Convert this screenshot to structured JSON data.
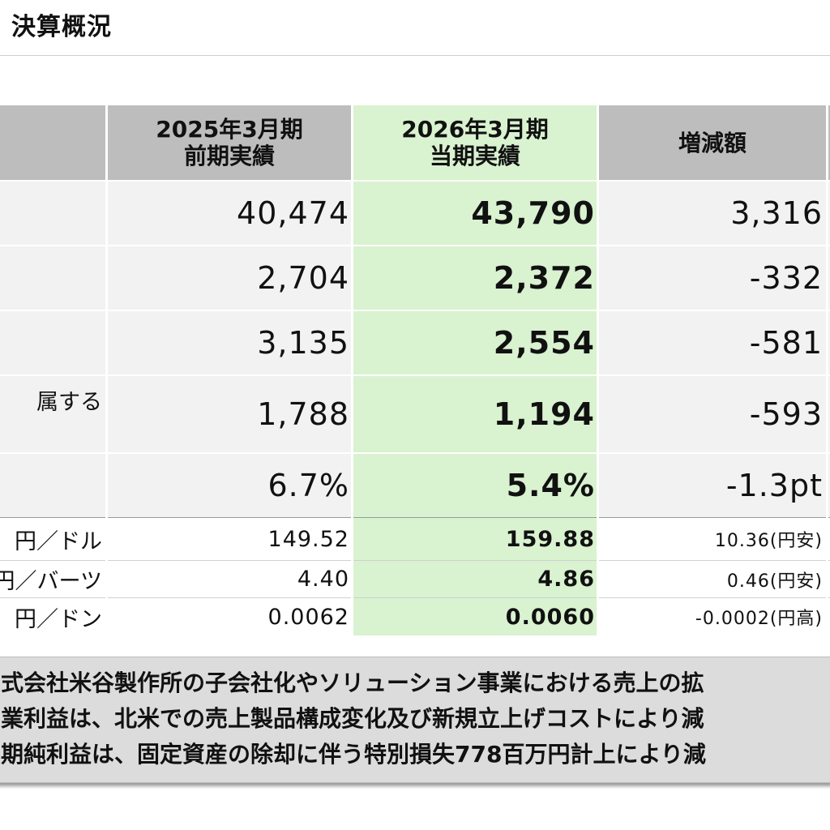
{
  "header": {
    "title": "決算概況"
  },
  "table": {
    "columns": [
      {
        "line1": "2025年3月期",
        "line2": "前期実績"
      },
      {
        "line1": "2026年3月期",
        "line2": "当期実績"
      },
      {
        "line1": "増減額",
        "line2": ""
      }
    ],
    "rows": [
      {
        "label": "",
        "prev": "40,474",
        "cur": "43,790",
        "diff": "3,316"
      },
      {
        "label": "",
        "prev": "2,704",
        "cur": "2,372",
        "diff": "-332"
      },
      {
        "label": "",
        "prev": "3,135",
        "cur": "2,554",
        "diff": "-581"
      },
      {
        "label": "属する",
        "prev": "1,788",
        "cur": "1,194",
        "diff": "-593"
      },
      {
        "label": "",
        "prev": "6.7%",
        "cur": "5.4%",
        "diff": "-1.3pt"
      }
    ],
    "fx_rows": [
      {
        "label": "円／ドル",
        "prev": "149.52",
        "cur": "159.88",
        "diff": "10.36(円安)"
      },
      {
        "label": "円／バーツ",
        "prev": "4.40",
        "cur": "4.86",
        "diff": "0.46(円安)"
      },
      {
        "label": "円／ドン",
        "prev": "0.0062",
        "cur": "0.0060",
        "diff": "-0.0002(円高)"
      }
    ]
  },
  "notes": [
    "式会社米谷製作所の子会社化やソリューション事業における売上の拡",
    "業利益は、北米での売上製品構成変化及び新規立上げコストにより減",
    "期純利益は、固定資産の除却に伴う特別損失778百万円計上により減"
  ]
}
